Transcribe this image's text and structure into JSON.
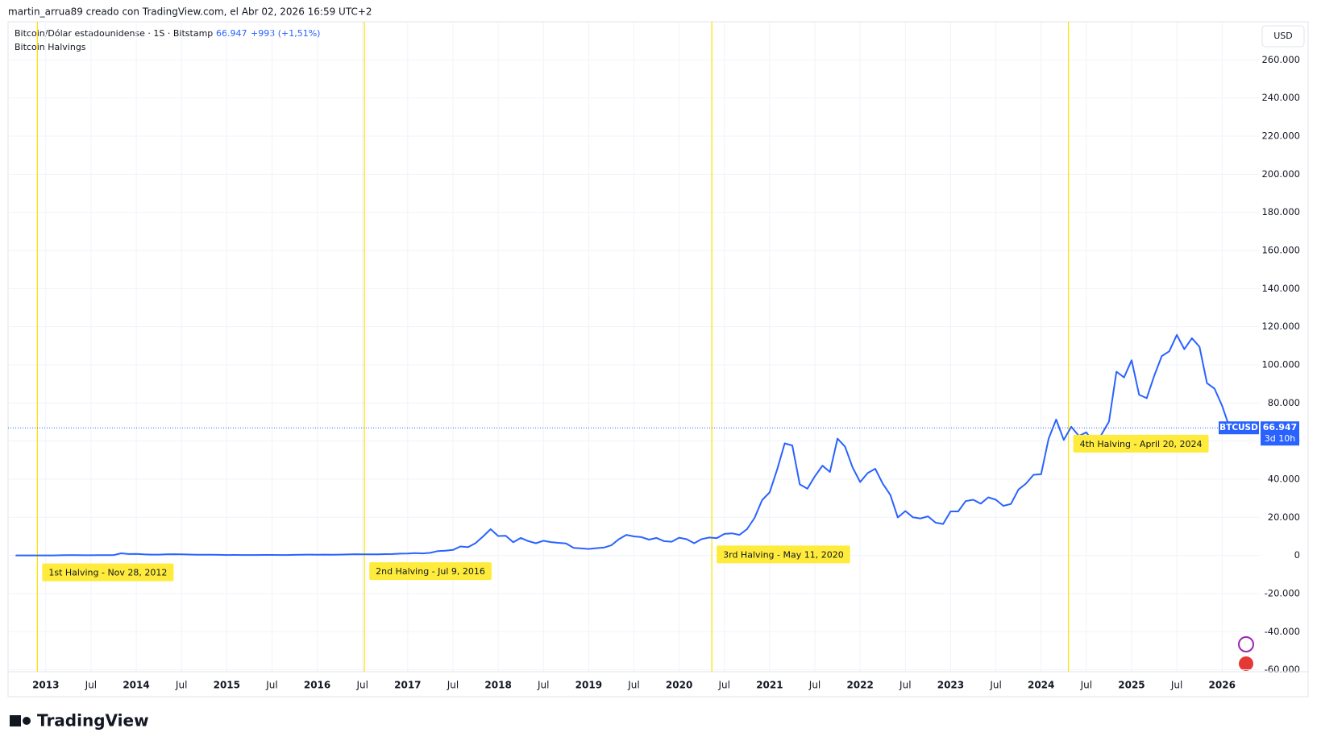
{
  "header": {
    "author_line": "martin_arrua89 creado con TradingView.com, el Abr 02, 2026 16:59 UTC+2",
    "symbol": "Bitcoin/Dólar estadounidense · 1S · Bitstamp",
    "change": "+993 (+1,51%)",
    "indicator": "Bitcoin Halvings",
    "currency": "USD"
  },
  "footer": {
    "brand": "TradingView"
  },
  "chart_data": {
    "type": "line",
    "series": [
      {
        "name": "BTCUSD",
        "color": "#2962ff",
        "values": [
          12,
          11,
          12,
          13,
          20,
          33,
          93,
          139,
          129,
          97,
          106,
          135,
          141,
          204,
          1100,
          730,
          800,
          550,
          450,
          440,
          620,
          640,
          580,
          480,
          390,
          340,
          380,
          320,
          220,
          250,
          245,
          235,
          230,
          260,
          285,
          230,
          236,
          315,
          377,
          430,
          370,
          437,
          416,
          448,
          530,
          670,
          624,
          575,
          610,
          700,
          745,
          963,
          970,
          1190,
          1080,
          1350,
          2300,
          2500,
          2870,
          4700,
          4340,
          6450,
          10000,
          13800,
          10200,
          10300,
          6900,
          9200,
          7500,
          6400,
          7700,
          7000,
          6600,
          6300,
          4000,
          3700,
          3400,
          3800,
          4100,
          5300,
          8500,
          10800,
          10000,
          9600,
          8300,
          9200,
          7500,
          7200,
          9300,
          8500,
          6400,
          8600,
          9400,
          9100,
          11300,
          11600,
          10800,
          13800,
          19700,
          29000,
          33100,
          45200,
          58800,
          57700,
          37300,
          35000,
          41500,
          47100,
          43800,
          61300,
          57000,
          46200,
          38500,
          43200,
          45500,
          37700,
          31800,
          19900,
          23300,
          20000,
          19400,
          20500,
          17200,
          16500,
          23100,
          23100,
          28500,
          29200,
          27200,
          30500,
          29200,
          26000,
          27000,
          34600,
          37700,
          42300,
          42600,
          61200,
          71300,
          60600,
          67500,
          62700,
          64600,
          59000,
          63300,
          70200,
          96400,
          93400,
          102400,
          84300,
          82500,
          94200,
          104600,
          107100,
          115700,
          108200,
          114000,
          109500,
          90400,
          87500,
          78600,
          67000,
          66947
        ]
      }
    ],
    "x": [
      "2012-09",
      "2012-10",
      "2012-11",
      "2012-12",
      "2013-01",
      "2013-02",
      "2013-03",
      "2013-04",
      "2013-05",
      "2013-06",
      "2013-07",
      "2013-08",
      "2013-09",
      "2013-10",
      "2013-11",
      "2013-12",
      "2014-01",
      "2014-02",
      "2014-03",
      "2014-04",
      "2014-05",
      "2014-06",
      "2014-07",
      "2014-08",
      "2014-09",
      "2014-10",
      "2014-11",
      "2014-12",
      "2015-01",
      "2015-02",
      "2015-03",
      "2015-04",
      "2015-05",
      "2015-06",
      "2015-07",
      "2015-08",
      "2015-09",
      "2015-10",
      "2015-11",
      "2015-12",
      "2016-01",
      "2016-02",
      "2016-03",
      "2016-04",
      "2016-05",
      "2016-06",
      "2016-07",
      "2016-08",
      "2016-09",
      "2016-10",
      "2016-11",
      "2016-12",
      "2017-01",
      "2017-02",
      "2017-03",
      "2017-04",
      "2017-05",
      "2017-06",
      "2017-07",
      "2017-08",
      "2017-09",
      "2017-10",
      "2017-11",
      "2017-12",
      "2018-01",
      "2018-02",
      "2018-03",
      "2018-04",
      "2018-05",
      "2018-06",
      "2018-07",
      "2018-08",
      "2018-09",
      "2018-10",
      "2018-11",
      "2018-12",
      "2019-01",
      "2019-02",
      "2019-03",
      "2019-04",
      "2019-05",
      "2019-06",
      "2019-07",
      "2019-08",
      "2019-09",
      "2019-10",
      "2019-11",
      "2019-12",
      "2020-01",
      "2020-02",
      "2020-03",
      "2020-04",
      "2020-05",
      "2020-06",
      "2020-07",
      "2020-08",
      "2020-09",
      "2020-10",
      "2020-11",
      "2020-12",
      "2021-01",
      "2021-02",
      "2021-03",
      "2021-04",
      "2021-05",
      "2021-06",
      "2021-07",
      "2021-08",
      "2021-09",
      "2021-10",
      "2021-11",
      "2021-12",
      "2022-01",
      "2022-02",
      "2022-03",
      "2022-04",
      "2022-05",
      "2022-06",
      "2022-07",
      "2022-08",
      "2022-09",
      "2022-10",
      "2022-11",
      "2022-12",
      "2023-01",
      "2023-02",
      "2023-03",
      "2023-04",
      "2023-05",
      "2023-06",
      "2023-07",
      "2023-08",
      "2023-09",
      "2023-10",
      "2023-11",
      "2023-12",
      "2024-01",
      "2024-02",
      "2024-03",
      "2024-04",
      "2024-05",
      "2024-06",
      "2024-07",
      "2024-08",
      "2024-09",
      "2024-10",
      "2024-11",
      "2024-12",
      "2025-01",
      "2025-02",
      "2025-03",
      "2025-04",
      "2025-05",
      "2025-06",
      "2025-07",
      "2025-08",
      "2025-09",
      "2025-10",
      "2025-11",
      "2025-12",
      "2026-01",
      "2026-02",
      "2026-03"
    ],
    "xlim": [
      "2012-08",
      "2026-06"
    ],
    "xticks": [
      {
        "value": "2013-01",
        "label": "2013"
      },
      {
        "value": "2013-07",
        "label": "Jul"
      },
      {
        "value": "2014-01",
        "label": "2014"
      },
      {
        "value": "2014-07",
        "label": "Jul"
      },
      {
        "value": "2015-01",
        "label": "2015"
      },
      {
        "value": "2015-07",
        "label": "Jul"
      },
      {
        "value": "2016-01",
        "label": "2016"
      },
      {
        "value": "2016-07",
        "label": "Jul"
      },
      {
        "value": "2017-01",
        "label": "2017"
      },
      {
        "value": "2017-07",
        "label": "Jul"
      },
      {
        "value": "2018-01",
        "label": "2018"
      },
      {
        "value": "2018-07",
        "label": "Jul"
      },
      {
        "value": "2019-01",
        "label": "2019"
      },
      {
        "value": "2019-07",
        "label": "Jul"
      },
      {
        "value": "2020-01",
        "label": "2020"
      },
      {
        "value": "2020-07",
        "label": "Jul"
      },
      {
        "value": "2021-01",
        "label": "2021"
      },
      {
        "value": "2021-07",
        "label": "Jul"
      },
      {
        "value": "2022-01",
        "label": "2022"
      },
      {
        "value": "2022-07",
        "label": "Jul"
      },
      {
        "value": "2023-01",
        "label": "2023"
      },
      {
        "value": "2023-07",
        "label": "Jul"
      },
      {
        "value": "2024-01",
        "label": "2024"
      },
      {
        "value": "2024-07",
        "label": "Jul"
      },
      {
        "value": "2025-01",
        "label": "2025"
      },
      {
        "value": "2025-07",
        "label": "Jul"
      },
      {
        "value": "2026-01",
        "label": "2026"
      }
    ],
    "ylim": [
      -61000,
      280000
    ],
    "yticks": [
      {
        "value": 260000,
        "label": "260.000"
      },
      {
        "value": 240000,
        "label": "240.000"
      },
      {
        "value": 220000,
        "label": "220.000"
      },
      {
        "value": 200000,
        "label": "200.000"
      },
      {
        "value": 180000,
        "label": "180.000"
      },
      {
        "value": 160000,
        "label": "160.000"
      },
      {
        "value": 140000,
        "label": "140.000"
      },
      {
        "value": 120000,
        "label": "120.000"
      },
      {
        "value": 100000,
        "label": "100.000"
      },
      {
        "value": 80000,
        "label": "80.000"
      },
      {
        "value": 60000,
        "label": "60.000"
      },
      {
        "value": 40000,
        "label": "40.000"
      },
      {
        "value": 20000,
        "label": "20.000"
      },
      0,
      {
        "value": -20000,
        "label": "-20.000"
      },
      {
        "value": -40000,
        "label": "-40.000"
      },
      {
        "value": -60000,
        "label": "-60.000"
      }
    ],
    "grid": true,
    "last_price": {
      "value": 66947,
      "label": "66.947",
      "countdown": "3d 10h",
      "color": "#2962ff"
    },
    "halvings": {
      "color": "#ffe000",
      "label_color": "#ffeb3b",
      "events": [
        {
          "date": "2012-11-28",
          "label": "1st Halving - Nov 28, 2012"
        },
        {
          "date": "2016-07-09",
          "label": "2nd Halving - Jul 9, 2016"
        },
        {
          "date": "2020-05-11",
          "label": "3rd Halving - May 11, 2020"
        },
        {
          "date": "2024-04-20",
          "label": "4th Halving - April 20, 2024"
        }
      ]
    }
  }
}
